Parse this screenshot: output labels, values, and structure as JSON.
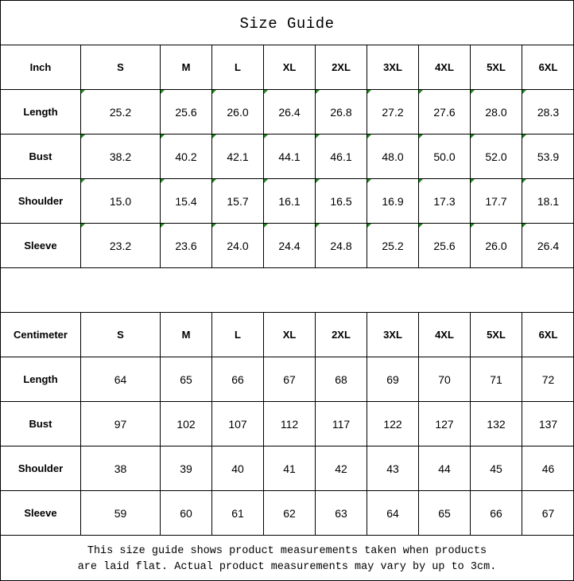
{
  "title": "Size Guide",
  "sizes": [
    "S",
    "M",
    "L",
    "XL",
    "2XL",
    "3XL",
    "4XL",
    "5XL",
    "6XL"
  ],
  "inch": {
    "header": "Inch",
    "rows": [
      {
        "label": "Length",
        "values": [
          "25.2",
          "25.6",
          "26.0",
          "26.4",
          "26.8",
          "27.2",
          "27.6",
          "28.0",
          "28.3"
        ]
      },
      {
        "label": "Bust",
        "values": [
          "38.2",
          "40.2",
          "42.1",
          "44.1",
          "46.1",
          "48.0",
          "50.0",
          "52.0",
          "53.9"
        ]
      },
      {
        "label": "Shoulder",
        "values": [
          "15.0",
          "15.4",
          "15.7",
          "16.1",
          "16.5",
          "16.9",
          "17.3",
          "17.7",
          "18.1"
        ]
      },
      {
        "label": "Sleeve",
        "values": [
          "23.2",
          "23.6",
          "24.0",
          "24.4",
          "24.8",
          "25.2",
          "25.6",
          "26.0",
          "26.4"
        ]
      }
    ]
  },
  "centimeter": {
    "header": "Centimeter",
    "rows": [
      {
        "label": "Length",
        "values": [
          "64",
          "65",
          "66",
          "67",
          "68",
          "69",
          "70",
          "71",
          "72"
        ]
      },
      {
        "label": "Bust",
        "values": [
          "97",
          "102",
          "107",
          "112",
          "117",
          "122",
          "127",
          "132",
          "137"
        ]
      },
      {
        "label": "Shoulder",
        "values": [
          "38",
          "39",
          "40",
          "41",
          "42",
          "43",
          "44",
          "45",
          "46"
        ]
      },
      {
        "label": "Sleeve",
        "values": [
          "59",
          "60",
          "61",
          "62",
          "63",
          "64",
          "65",
          "66",
          "67"
        ]
      }
    ]
  },
  "note": {
    "line1": "This size guide shows product measurements taken when products",
    "line2": "are laid flat. Actual product measurements may vary by up to 3cm."
  },
  "colors": {
    "warning_triangle": "#1a8a1a"
  }
}
